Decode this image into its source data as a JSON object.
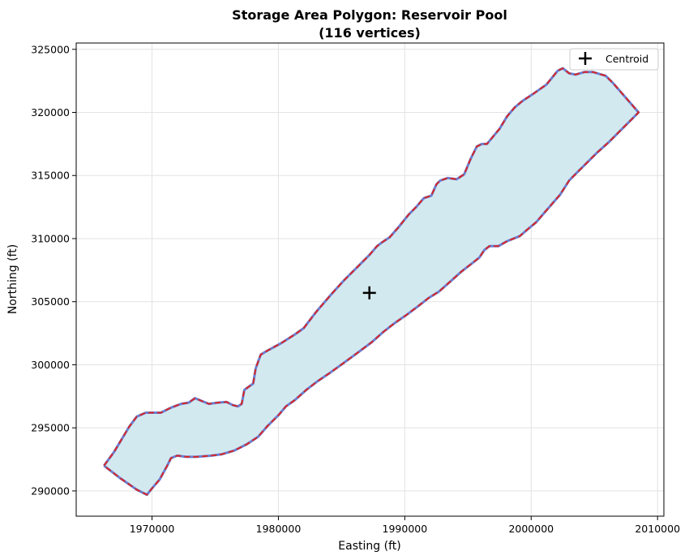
{
  "chart_data": {
    "type": "area",
    "title_line1": "Storage Area Polygon: Reservoir Pool",
    "title_line2": "(116 vertices)",
    "xlabel": "Easting (ft)",
    "ylabel": "Northing (ft)",
    "xlim": [
      1964000,
      2010500
    ],
    "ylim": [
      288000,
      325500
    ],
    "x_ticks": [
      1970000,
      1980000,
      1990000,
      2000000,
      2010000
    ],
    "y_ticks": [
      290000,
      295000,
      300000,
      305000,
      310000,
      315000,
      320000,
      325000
    ],
    "x_tick_labels": [
      "1970000",
      "1980000",
      "1990000",
      "2000000",
      "2010000"
    ],
    "y_tick_labels": [
      "290000",
      "295000",
      "300000",
      "305000",
      "310000",
      "315000",
      "320000",
      "325000"
    ],
    "grid": true,
    "legend_position": "top-right",
    "legend": [
      {
        "label": "Centroid",
        "marker": "plus",
        "color": "#000000"
      }
    ],
    "fill_color": "#d3e9f0",
    "boundary_color": "#6a7fd1",
    "dash_color": "#d62728",
    "centroid": {
      "x": 1987200,
      "y": 305700
    },
    "polygon": [
      [
        1966200,
        292000
      ],
      [
        1967000,
        293100
      ],
      [
        1968200,
        295100
      ],
      [
        1968800,
        295900
      ],
      [
        1969500,
        296200
      ],
      [
        1970700,
        296200
      ],
      [
        1971500,
        296600
      ],
      [
        1972300,
        296900
      ],
      [
        1972900,
        297000
      ],
      [
        1973400,
        297350
      ],
      [
        1974000,
        297100
      ],
      [
        1974500,
        296900
      ],
      [
        1975200,
        297000
      ],
      [
        1975900,
        297050
      ],
      [
        1976400,
        296800
      ],
      [
        1976800,
        296700
      ],
      [
        1977100,
        296900
      ],
      [
        1977300,
        298000
      ],
      [
        1977700,
        298300
      ],
      [
        1978000,
        298500
      ],
      [
        1978200,
        299700
      ],
      [
        1978600,
        300800
      ],
      [
        1979100,
        301100
      ],
      [
        1980200,
        301700
      ],
      [
        1981300,
        302400
      ],
      [
        1982000,
        302900
      ],
      [
        1983000,
        304200
      ],
      [
        1984200,
        305600
      ],
      [
        1985200,
        306700
      ],
      [
        1986300,
        307800
      ],
      [
        1987200,
        308700
      ],
      [
        1987800,
        309400
      ],
      [
        1988200,
        309700
      ],
      [
        1988800,
        310100
      ],
      [
        1989500,
        310900
      ],
      [
        1990300,
        311900
      ],
      [
        1990900,
        312500
      ],
      [
        1991500,
        313200
      ],
      [
        1992100,
        313400
      ],
      [
        1992500,
        314300
      ],
      [
        1992800,
        314600
      ],
      [
        1993400,
        314800
      ],
      [
        1994100,
        314700
      ],
      [
        1994700,
        315100
      ],
      [
        1995200,
        316300
      ],
      [
        1995700,
        317300
      ],
      [
        1996100,
        317500
      ],
      [
        1996500,
        317500
      ],
      [
        1997500,
        318700
      ],
      [
        1998100,
        319700
      ],
      [
        1998700,
        320400
      ],
      [
        1999300,
        320900
      ],
      [
        2000200,
        321500
      ],
      [
        2001200,
        322200
      ],
      [
        2002100,
        323300
      ],
      [
        2002500,
        323500
      ],
      [
        2003000,
        323100
      ],
      [
        2003500,
        323000
      ],
      [
        2004200,
        323200
      ],
      [
        2004900,
        323200
      ],
      [
        2005900,
        322900
      ],
      [
        2006500,
        322300
      ],
      [
        2008500,
        320000
      ],
      [
        2007900,
        319400
      ],
      [
        2007000,
        318500
      ],
      [
        2006100,
        317600
      ],
      [
        2005200,
        316800
      ],
      [
        2004400,
        316000
      ],
      [
        2003600,
        315200
      ],
      [
        2003000,
        314600
      ],
      [
        2002300,
        313500
      ],
      [
        2001700,
        312800
      ],
      [
        2001000,
        312000
      ],
      [
        2000400,
        311300
      ],
      [
        1999800,
        310800
      ],
      [
        1999100,
        310200
      ],
      [
        1998100,
        309800
      ],
      [
        1997400,
        309400
      ],
      [
        1996700,
        309400
      ],
      [
        1996300,
        309100
      ],
      [
        1995900,
        308500
      ],
      [
        1995400,
        308100
      ],
      [
        1994500,
        307400
      ],
      [
        1993500,
        306500
      ],
      [
        1992700,
        305800
      ],
      [
        1991900,
        305300
      ],
      [
        1991000,
        304600
      ],
      [
        1990200,
        304000
      ],
      [
        1989200,
        303300
      ],
      [
        1988300,
        302600
      ],
      [
        1987400,
        301800
      ],
      [
        1986200,
        300900
      ],
      [
        1985100,
        300100
      ],
      [
        1984000,
        299300
      ],
      [
        1983100,
        298700
      ],
      [
        1982200,
        298000
      ],
      [
        1981300,
        297200
      ],
      [
        1980600,
        296700
      ],
      [
        1980000,
        296000
      ],
      [
        1979100,
        295100
      ],
      [
        1978400,
        294300
      ],
      [
        1977500,
        293700
      ],
      [
        1976500,
        293200
      ],
      [
        1975500,
        292900
      ],
      [
        1974700,
        292800
      ],
      [
        1973500,
        292700
      ],
      [
        1972700,
        292700
      ],
      [
        1972000,
        292800
      ],
      [
        1971500,
        292600
      ],
      [
        1971200,
        292000
      ],
      [
        1970600,
        290900
      ],
      [
        1970000,
        290200
      ],
      [
        1969600,
        289700
      ],
      [
        1968800,
        290100
      ],
      [
        1967500,
        291000
      ],
      [
        1966200,
        292000
      ]
    ]
  }
}
